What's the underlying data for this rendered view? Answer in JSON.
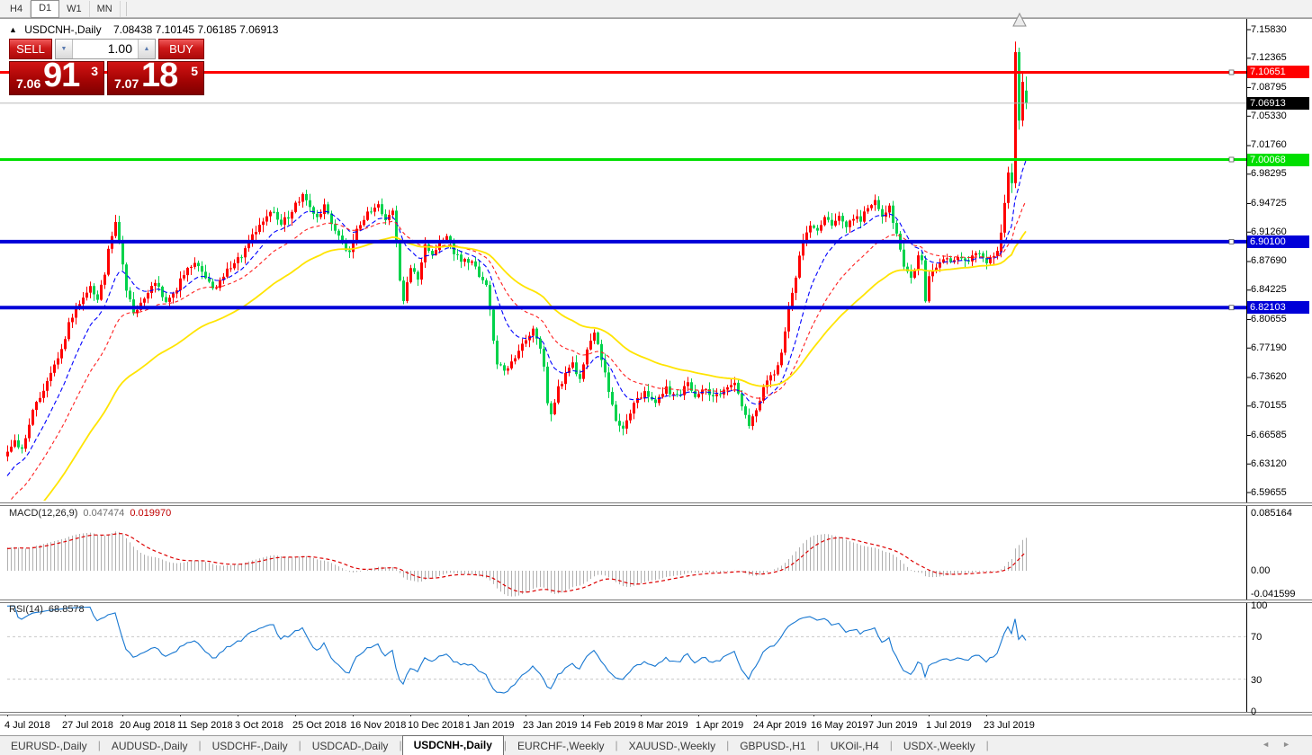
{
  "toolbar": {
    "timeframes": [
      {
        "label": "H4",
        "active": false
      },
      {
        "label": "D1",
        "active": true
      },
      {
        "label": "W1",
        "active": false
      },
      {
        "label": "MN",
        "active": false
      }
    ]
  },
  "chart": {
    "collapse_icon": "▲",
    "symbol": "USDCNH-,Daily",
    "ohlc_text": "7.08438 7.10145 7.06185 7.06913",
    "quote_panel": {
      "sell_label": "SELL",
      "buy_label": "BUY",
      "volume": "1.00",
      "spin_down_icon": "▼",
      "spin_up_icon": "▲",
      "bid_prefix": "7.06",
      "bid_big": "91",
      "bid_sup": "3",
      "ask_prefix": "7.07",
      "ask_big": "18",
      "ask_sup": "5"
    }
  },
  "chart_data": {
    "type": "candlestick",
    "symbol": "USDCNH-,Daily",
    "timeframe": "Daily",
    "up_color": "#FE0000",
    "down_color": "#00D24B",
    "ylim": [
      6.59655,
      7.1583
    ],
    "y_ticks": [
      "7.15830",
      "7.12365",
      "7.08795",
      "7.05330",
      "7.01760",
      "6.98295",
      "6.94725",
      "6.91260",
      "6.87690",
      "6.84225",
      "6.80655",
      "6.77190",
      "6.73620",
      "6.70155",
      "6.66585",
      "6.63120",
      "6.59655"
    ],
    "x_ticks": [
      "4 Jul 2018",
      "27 Jul 2018",
      "20 Aug 2018",
      "11 Sep 2018",
      "3 Oct 2018",
      "25 Oct 2018",
      "16 Nov 2018",
      "10 Dec 2018",
      "1 Jan 2019",
      "23 Jan 2019",
      "14 Feb 2019",
      "8 Mar 2019",
      "1 Apr 2019",
      "24 Apr 2019",
      "16 May 2019",
      "7 Jun 2019",
      "1 Jul 2019",
      "23 Jul 2019"
    ],
    "x_tick_every_candles": 16,
    "candles_total": 284,
    "close_keyframes": [
      [
        0,
        6.647
      ],
      [
        2,
        6.662
      ],
      [
        4,
        6.648
      ],
      [
        7,
        6.695
      ],
      [
        10,
        6.72
      ],
      [
        13,
        6.75
      ],
      [
        15,
        6.772
      ],
      [
        17,
        6.8
      ],
      [
        20,
        6.828
      ],
      [
        23,
        6.845
      ],
      [
        25,
        6.832
      ],
      [
        27,
        6.862
      ],
      [
        28,
        6.895
      ],
      [
        30,
        6.928
      ],
      [
        31,
        6.9
      ],
      [
        33,
        6.845
      ],
      [
        35,
        6.812
      ],
      [
        38,
        6.832
      ],
      [
        41,
        6.852
      ],
      [
        44,
        6.828
      ],
      [
        47,
        6.845
      ],
      [
        49,
        6.862
      ],
      [
        52,
        6.875
      ],
      [
        55,
        6.856
      ],
      [
        58,
        6.842
      ],
      [
        61,
        6.868
      ],
      [
        65,
        6.885
      ],
      [
        68,
        6.908
      ],
      [
        71,
        6.925
      ],
      [
        74,
        6.938
      ],
      [
        76,
        6.922
      ],
      [
        79,
        6.938
      ],
      [
        82,
        6.958
      ],
      [
        84,
        6.945
      ],
      [
        86,
        6.928
      ],
      [
        88,
        6.948
      ],
      [
        90,
        6.925
      ],
      [
        93,
        6.898
      ],
      [
        95,
        6.888
      ],
      [
        97,
        6.915
      ],
      [
        100,
        6.935
      ],
      [
        103,
        6.945
      ],
      [
        105,
        6.928
      ],
      [
        107,
        6.938
      ],
      [
        108,
        6.9
      ],
      [
        109,
        6.855
      ],
      [
        110,
        6.828
      ],
      [
        112,
        6.872
      ],
      [
        114,
        6.858
      ],
      [
        116,
        6.898
      ],
      [
        118,
        6.885
      ],
      [
        120,
        6.902
      ],
      [
        122,
        6.908
      ],
      [
        124,
        6.888
      ],
      [
        126,
        6.878
      ],
      [
        129,
        6.875
      ],
      [
        131,
        6.862
      ],
      [
        133,
        6.848
      ],
      [
        134,
        6.822
      ],
      [
        135,
        6.782
      ],
      [
        136,
        6.755
      ],
      [
        138,
        6.742
      ],
      [
        140,
        6.755
      ],
      [
        142,
        6.765
      ],
      [
        144,
        6.782
      ],
      [
        146,
        6.798
      ],
      [
        148,
        6.772
      ],
      [
        149,
        6.748
      ],
      [
        150,
        6.708
      ],
      [
        151,
        6.695
      ],
      [
        153,
        6.722
      ],
      [
        155,
        6.742
      ],
      [
        157,
        6.752
      ],
      [
        159,
        6.735
      ],
      [
        161,
        6.768
      ],
      [
        163,
        6.788
      ],
      [
        165,
        6.76
      ],
      [
        167,
        6.722
      ],
      [
        169,
        6.682
      ],
      [
        171,
        6.672
      ],
      [
        173,
        6.695
      ],
      [
        175,
        6.712
      ],
      [
        177,
        6.716
      ],
      [
        180,
        6.705
      ],
      [
        183,
        6.722
      ],
      [
        186,
        6.712
      ],
      [
        189,
        6.728
      ],
      [
        191,
        6.716
      ],
      [
        193,
        6.722
      ],
      [
        196,
        6.712
      ],
      [
        199,
        6.722
      ],
      [
        202,
        6.728
      ],
      [
        204,
        6.702
      ],
      [
        206,
        6.678
      ],
      [
        208,
        6.695
      ],
      [
        210,
        6.722
      ],
      [
        212,
        6.738
      ],
      [
        214,
        6.748
      ],
      [
        216,
        6.792
      ],
      [
        217,
        6.818
      ],
      [
        218,
        6.842
      ],
      [
        219,
        6.858
      ],
      [
        220,
        6.882
      ],
      [
        221,
        6.905
      ],
      [
        223,
        6.922
      ],
      [
        225,
        6.912
      ],
      [
        227,
        6.932
      ],
      [
        229,
        6.918
      ],
      [
        231,
        6.936
      ],
      [
        233,
        6.922
      ],
      [
        235,
        6.932
      ],
      [
        237,
        6.926
      ],
      [
        239,
        6.945
      ],
      [
        241,
        6.948
      ],
      [
        243,
        6.932
      ],
      [
        245,
        6.942
      ],
      [
        247,
        6.908
      ],
      [
        249,
        6.872
      ],
      [
        251,
        6.858
      ],
      [
        253,
        6.882
      ],
      [
        254,
        6.878
      ],
      [
        255,
        6.828
      ],
      [
        256,
        6.858
      ],
      [
        258,
        6.872
      ],
      [
        260,
        6.882
      ],
      [
        262,
        6.876
      ],
      [
        264,
        6.886
      ],
      [
        266,
        6.876
      ],
      [
        268,
        6.882
      ],
      [
        270,
        6.886
      ],
      [
        272,
        6.878
      ],
      [
        274,
        6.882
      ],
      [
        276,
        6.892
      ]
    ],
    "last_candles_ohlc": [
      [
        276,
        6.888,
        6.922,
        6.882,
        6.912
      ],
      [
        277,
        6.912,
        6.958,
        6.906,
        6.948
      ],
      [
        278,
        6.948,
        6.992,
        6.941,
        6.985
      ],
      [
        279,
        6.985,
        6.996,
        6.96,
        6.972
      ],
      [
        280,
        6.972,
        7.1438,
        6.966,
        7.131
      ],
      [
        281,
        7.131,
        7.1365,
        7.037,
        7.048
      ],
      [
        282,
        7.048,
        7.105,
        7.041,
        7.095
      ],
      [
        283,
        7.08438,
        7.10145,
        7.06185,
        7.06913
      ]
    ],
    "hlines": [
      {
        "label": "7.10651",
        "value": 7.10651,
        "color": "#FF0000",
        "width": 3
      },
      {
        "label": "7.00068",
        "value": 7.00068,
        "color": "#00DF00",
        "width": 3
      },
      {
        "label": "6.90100",
        "value": 6.901,
        "color": "#0000D8",
        "width": 4
      },
      {
        "label": "6.82103",
        "value": 6.82103,
        "color": "#0000D8",
        "width": 4
      }
    ],
    "current_price": {
      "label": "7.06913",
      "value": 7.06913,
      "line_color": "#B8B8B8",
      "chip_color": "#000000"
    },
    "ma_lines": [
      {
        "name": "fast-ma",
        "period": 12,
        "color": "#0000FF",
        "dash": "5,3"
      },
      {
        "name": "mid-ma",
        "period": 26,
        "color": "#FF2020",
        "dash": "4,3"
      },
      {
        "name": "slow-ma",
        "period": 52,
        "color": "#FFE400",
        "dash": ""
      }
    ],
    "macd": {
      "label": "MACD(12,26,9)",
      "main_value": "0.047474",
      "signal_value": "0.019970",
      "scale_labels": [
        "0.085164",
        "0.00",
        "-0.041599"
      ],
      "hist_color": "#B0B0B0",
      "signal_color": "#DD0000"
    },
    "rsi": {
      "label": "RSI(14)",
      "value": "68.8578",
      "line_color": "#1777D1",
      "scale_labels": [
        "100",
        "70",
        "30",
        "0"
      ],
      "levels": [
        70,
        30
      ]
    }
  },
  "tabs": {
    "items": [
      {
        "label": "EURUSD-,Daily",
        "active": false
      },
      {
        "label": "AUDUSD-,Daily",
        "active": false
      },
      {
        "label": "USDCHF-,Daily",
        "active": false
      },
      {
        "label": "USDCAD-,Daily",
        "active": false
      },
      {
        "label": "USDCNH-,Daily",
        "active": true
      },
      {
        "label": "EURCHF-,Weekly",
        "active": false
      },
      {
        "label": "XAUUSD-,Weekly",
        "active": false
      },
      {
        "label": "GBPUSD-,H1",
        "active": false
      },
      {
        "label": "UKOil-,H4",
        "active": false
      },
      {
        "label": "USDX-,Weekly",
        "active": false
      }
    ],
    "scroll_left_icon": "◄",
    "scroll_right_icon": "►"
  }
}
